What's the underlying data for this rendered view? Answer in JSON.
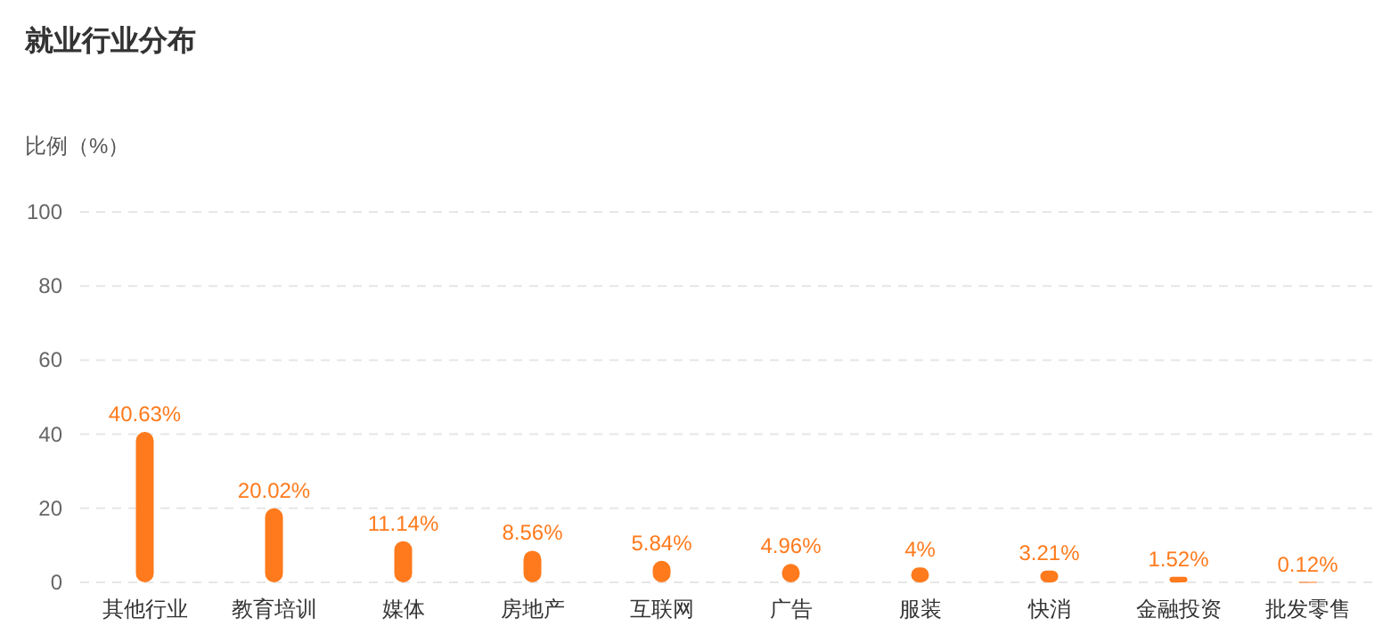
{
  "chart_data": {
    "type": "bar",
    "title": "就业行业分布",
    "ylabel": "比例（%）",
    "categories": [
      "其他行业",
      "教育培训",
      "媒体",
      "房地产",
      "互联网",
      "广告",
      "服装",
      "快消",
      "金融投资",
      "批发零售"
    ],
    "values": [
      40.63,
      20.02,
      11.14,
      8.56,
      5.84,
      4.96,
      4,
      3.21,
      1.52,
      0.12
    ],
    "value_labels": [
      "40.63%",
      "20.02%",
      "11.14%",
      "8.56%",
      "5.84%",
      "4.96%",
      "4%",
      "3.21%",
      "1.52%",
      "0.12%"
    ],
    "color": "#ff7a1c",
    "ylim": [
      0,
      100
    ],
    "yticks": [
      0,
      20,
      40,
      60,
      80,
      100
    ],
    "grid": "y"
  }
}
